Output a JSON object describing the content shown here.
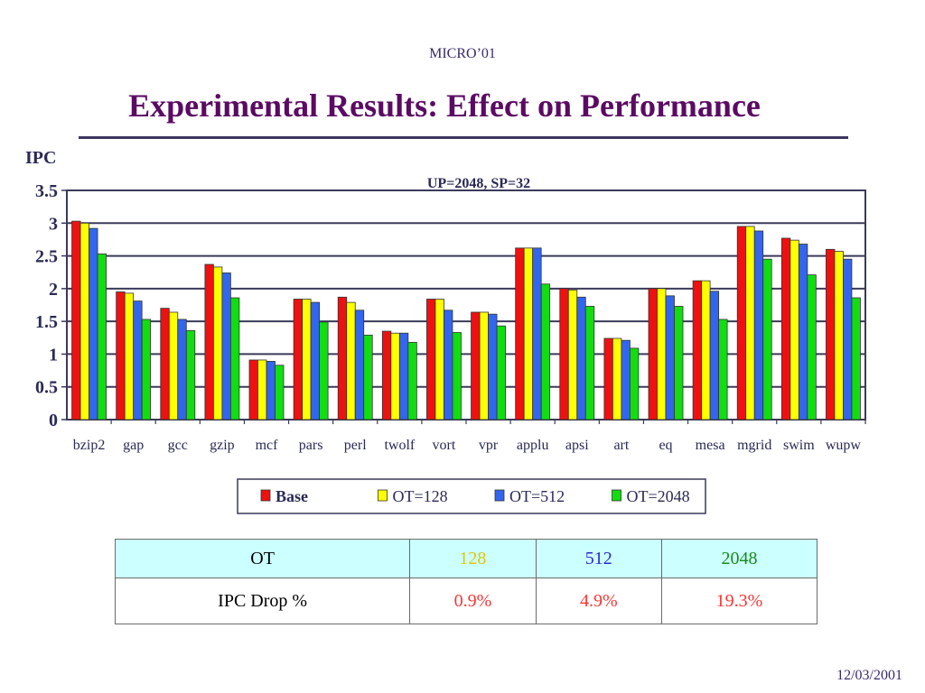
{
  "slide": {
    "header": "MICRO’01",
    "title": "Experimental Results: Effect on Performance",
    "footer_date": "12/03/2001"
  },
  "chart_data": {
    "type": "bar",
    "title": "UP=2048, SP=32",
    "ylabel": "IPC",
    "xlabel": "",
    "ylim": [
      0,
      3.5
    ],
    "yticks": [
      "0",
      "0.5",
      "1",
      "1.5",
      "2",
      "2.5",
      "3",
      "3.5"
    ],
    "grid": true,
    "legend_position": "bottom",
    "categories": [
      "bzip2",
      "gap",
      "gcc",
      "gzip",
      "mcf",
      "pars",
      "perl",
      "twolf",
      "vort",
      "vpr",
      "applu",
      "apsi",
      "art",
      "eq",
      "mesa",
      "mgrid",
      "swim",
      "wupw"
    ],
    "series": [
      {
        "name": "Base",
        "color": "#ee1111",
        "values": [
          3.03,
          1.95,
          1.7,
          2.37,
          0.91,
          1.84,
          1.87,
          1.35,
          1.84,
          1.64,
          2.62,
          2.0,
          1.24,
          2.0,
          2.12,
          2.95,
          2.77,
          2.6
        ]
      },
      {
        "name": "OT=128",
        "color": "#ffff00",
        "values": [
          3.0,
          1.93,
          1.64,
          2.33,
          0.91,
          1.84,
          1.79,
          1.32,
          1.84,
          1.64,
          2.62,
          1.98,
          1.24,
          2.0,
          2.12,
          2.95,
          2.74,
          2.57
        ]
      },
      {
        "name": "OT=512",
        "color": "#3366ee",
        "values": [
          2.92,
          1.81,
          1.53,
          2.24,
          0.89,
          1.79,
          1.67,
          1.32,
          1.67,
          1.61,
          2.62,
          1.87,
          1.21,
          1.89,
          1.96,
          2.88,
          2.68,
          2.45
        ]
      },
      {
        "name": "OT=2048",
        "color": "#11dd11",
        "values": [
          2.53,
          1.53,
          1.36,
          1.86,
          0.83,
          1.49,
          1.29,
          1.18,
          1.33,
          1.43,
          2.07,
          1.73,
          1.09,
          1.73,
          1.53,
          2.45,
          2.21,
          1.86
        ]
      }
    ]
  },
  "table": {
    "header": [
      {
        "text": "OT",
        "color": "#000000"
      },
      {
        "text": "128",
        "color": "#e0c800"
      },
      {
        "text": "512",
        "color": "#2a2acc"
      },
      {
        "text": "2048",
        "color": "#1a8a1a"
      }
    ],
    "row": [
      {
        "text": "IPC Drop %",
        "color": "#000000"
      },
      {
        "text": "0.9%",
        "color": "#ff3333"
      },
      {
        "text": "4.9%",
        "color": "#ff3333"
      },
      {
        "text": "19.3%",
        "color": "#ff3333"
      }
    ]
  }
}
